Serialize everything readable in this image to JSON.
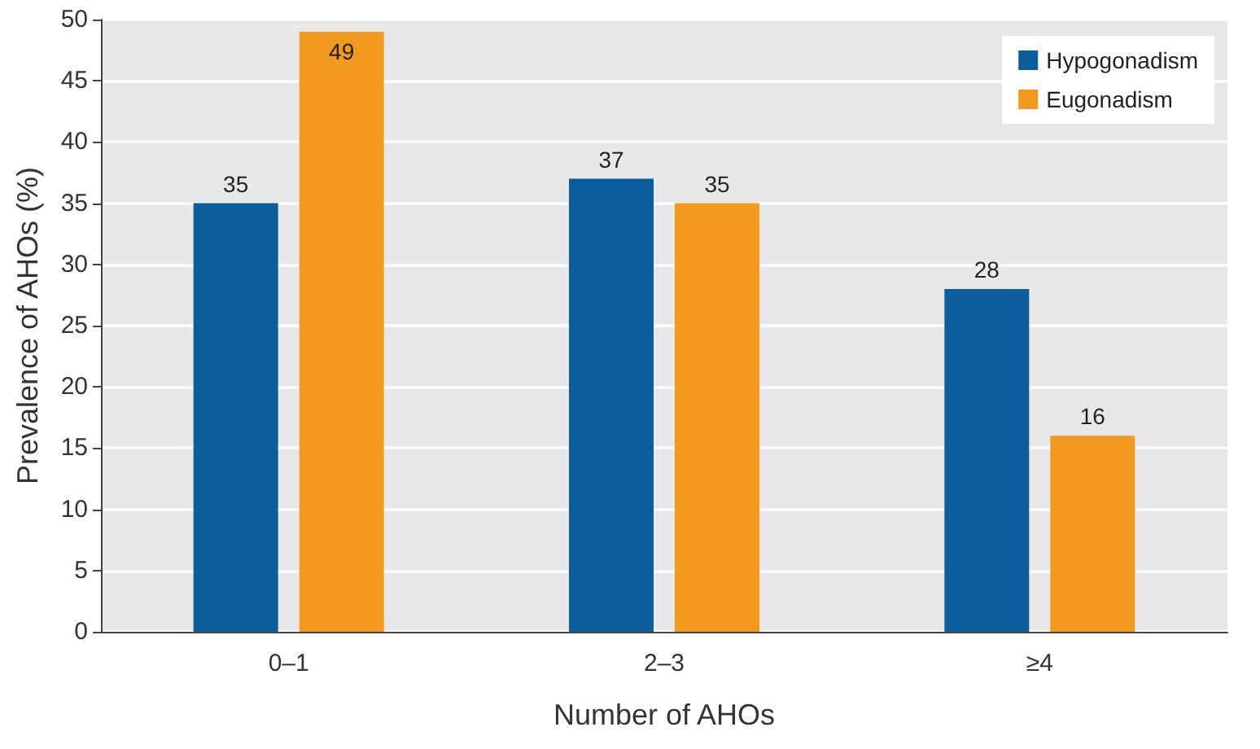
{
  "chart_data": {
    "type": "bar",
    "xlabel": "Number of AHOs",
    "ylabel": "Prevalence of AHOs (%)",
    "categories": [
      "0–1",
      "2–3",
      "≥4"
    ],
    "series": [
      {
        "name": "Hypogonadism",
        "color": "#0b5d9c",
        "values": [
          35,
          37,
          28
        ]
      },
      {
        "name": "Eugonadism",
        "color": "#f39a1e",
        "values": [
          49,
          35,
          16
        ]
      }
    ],
    "ylim": [
      0,
      50
    ],
    "yticks": [
      0,
      5,
      10,
      15,
      20,
      25,
      30,
      35,
      40,
      45,
      50
    ],
    "grid": "y",
    "legend": "top right",
    "data_labels": true
  }
}
